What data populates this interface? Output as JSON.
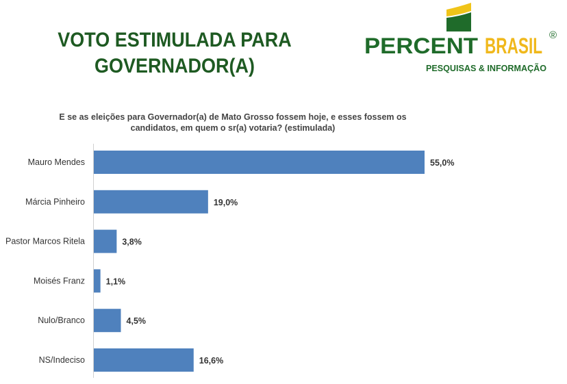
{
  "header": {
    "title_line1": "VOTO ESTIMULADA PARA",
    "title_line2": "GOVERNADOR(A)"
  },
  "logo": {
    "brand_part1": "PERCENT",
    "brand_part2": "BRASIL",
    "registered": "®",
    "tagline": "PESQUISAS & INFORMAÇÃO"
  },
  "chart_data": {
    "type": "bar",
    "orientation": "horizontal",
    "title": "E se as eleições para Governador(a) de Mato Grosso fossem hoje, e esses fossem os candidatos, em quem o sr(a) votaria?  (estimulada)",
    "title_line1": "E se as eleições para Governador(a) de Mato Grosso fossem hoje, e esses fossem os",
    "title_line2": "candidatos, em quem o sr(a) votaria?  (estimulada)",
    "categories": [
      "Mauro Mendes",
      "Márcia Pinheiro",
      "Pastor Marcos Ritela",
      "Moisés Franz",
      "Nulo/Branco",
      "NS/Indeciso"
    ],
    "values": [
      55.0,
      19.0,
      3.8,
      1.1,
      4.5,
      16.6
    ],
    "value_labels": [
      "55,0%",
      "19,0%",
      "3,8%",
      "1,1%",
      "4,5%",
      "16,6%"
    ],
    "xlim": [
      0,
      55
    ],
    "bar_color": "#4f81bd",
    "grid": false
  }
}
